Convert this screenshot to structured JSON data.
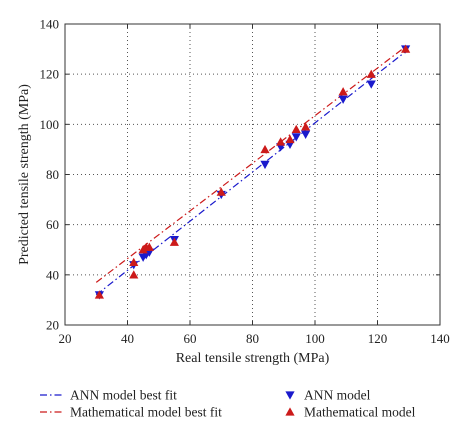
{
  "chart_data": {
    "type": "scatter",
    "title": "",
    "xlabel": "Real tensile strength (MPa)",
    "ylabel": "Predicted tensile strength (MPa)",
    "xlim": [
      20,
      140
    ],
    "ylim": [
      20,
      140
    ],
    "xticks": [
      20,
      40,
      60,
      80,
      100,
      120,
      140
    ],
    "yticks": [
      20,
      40,
      60,
      80,
      100,
      120,
      140
    ],
    "grid": true,
    "legend_placement": "below",
    "series": [
      {
        "name": "ANN model",
        "kind": "scatter",
        "marker": "triangle-down",
        "color": "#1a1acc",
        "x": [
          31,
          42,
          45,
          46,
          47,
          55,
          70,
          84,
          89,
          92,
          94,
          97,
          109,
          118,
          129
        ],
        "y": [
          32,
          44,
          47,
          48,
          49,
          54,
          72,
          84,
          91,
          92,
          95,
          96,
          110,
          116,
          130
        ]
      },
      {
        "name": "Mathematical model",
        "kind": "scatter",
        "marker": "triangle-up",
        "color": "#cc1a1a",
        "x": [
          31,
          42,
          42,
          45,
          46,
          47,
          55,
          70,
          84,
          89,
          92,
          94,
          97,
          109,
          118,
          129
        ],
        "y": [
          32,
          40,
          45,
          50,
          51,
          51,
          53,
          73,
          90,
          93,
          94,
          98,
          99,
          113,
          120,
          130
        ]
      },
      {
        "name": "ANN model best fit",
        "kind": "line",
        "dash": "dash-dot",
        "color": "#1a1acc",
        "x": [
          30,
          129
        ],
        "y": [
          32,
          129
        ]
      },
      {
        "name": "Mathematical model best fit",
        "kind": "line",
        "dash": "dash-dot",
        "color": "#cc1a1a",
        "x": [
          30,
          129
        ],
        "y": [
          37,
          131
        ]
      }
    ]
  }
}
